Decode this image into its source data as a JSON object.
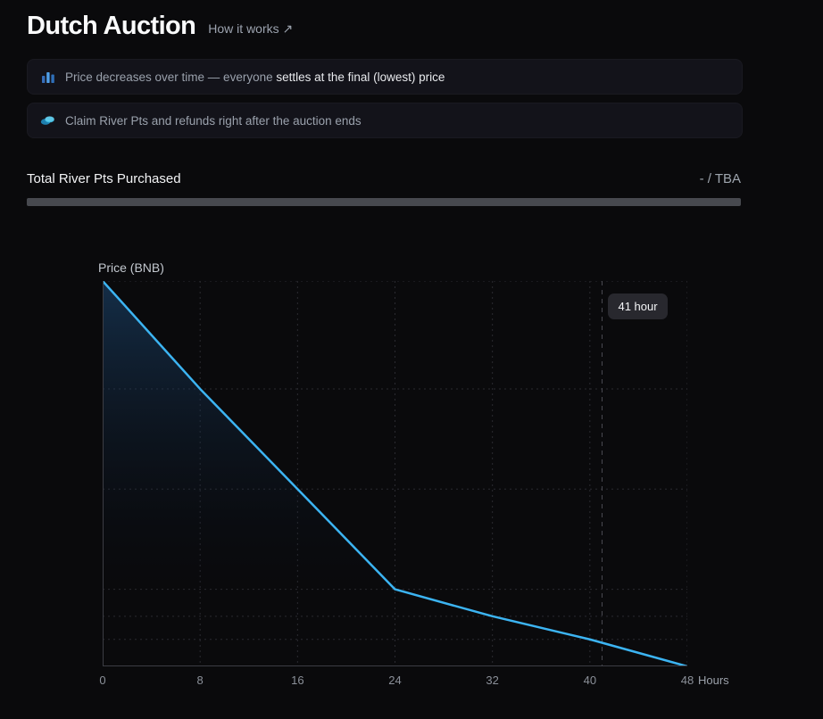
{
  "header": {
    "title": "Dutch Auction",
    "link": "How it works ↗"
  },
  "notes": [
    {
      "icon": "bar-chart-icon",
      "muted": "Price decreases over time — everyone ",
      "strong": "settles at the final (lowest) price"
    },
    {
      "icon": "coins-icon",
      "muted": "Claim River Pts and refunds right after the auction ends",
      "strong": ""
    }
  ],
  "purchase": {
    "label": "Total River Pts Purchased",
    "value": "- / TBA"
  },
  "chart_data": {
    "type": "line",
    "title": "Price (BNB)",
    "xlabel": "Hours",
    "x": [
      0,
      8,
      16,
      24,
      32,
      40,
      48
    ],
    "values_relative": [
      1.0,
      0.72,
      0.46,
      0.2,
      0.13,
      0.07,
      0.0
    ],
    "x_ticks": [
      0,
      8,
      16,
      24,
      32,
      40,
      48
    ],
    "xlim": [
      0,
      48
    ],
    "ylim": [
      0,
      1
    ],
    "grid": "dashed",
    "legend": "none",
    "marker": {
      "x": 41,
      "label": "41 hour"
    },
    "line_color": "#3cb4f2",
    "area_top_color": "rgba(31,82,132,0.5)",
    "grid_color": "#2b2b31",
    "axis_color": "#3c3d44",
    "marker_line_color": "#4a4a52"
  }
}
